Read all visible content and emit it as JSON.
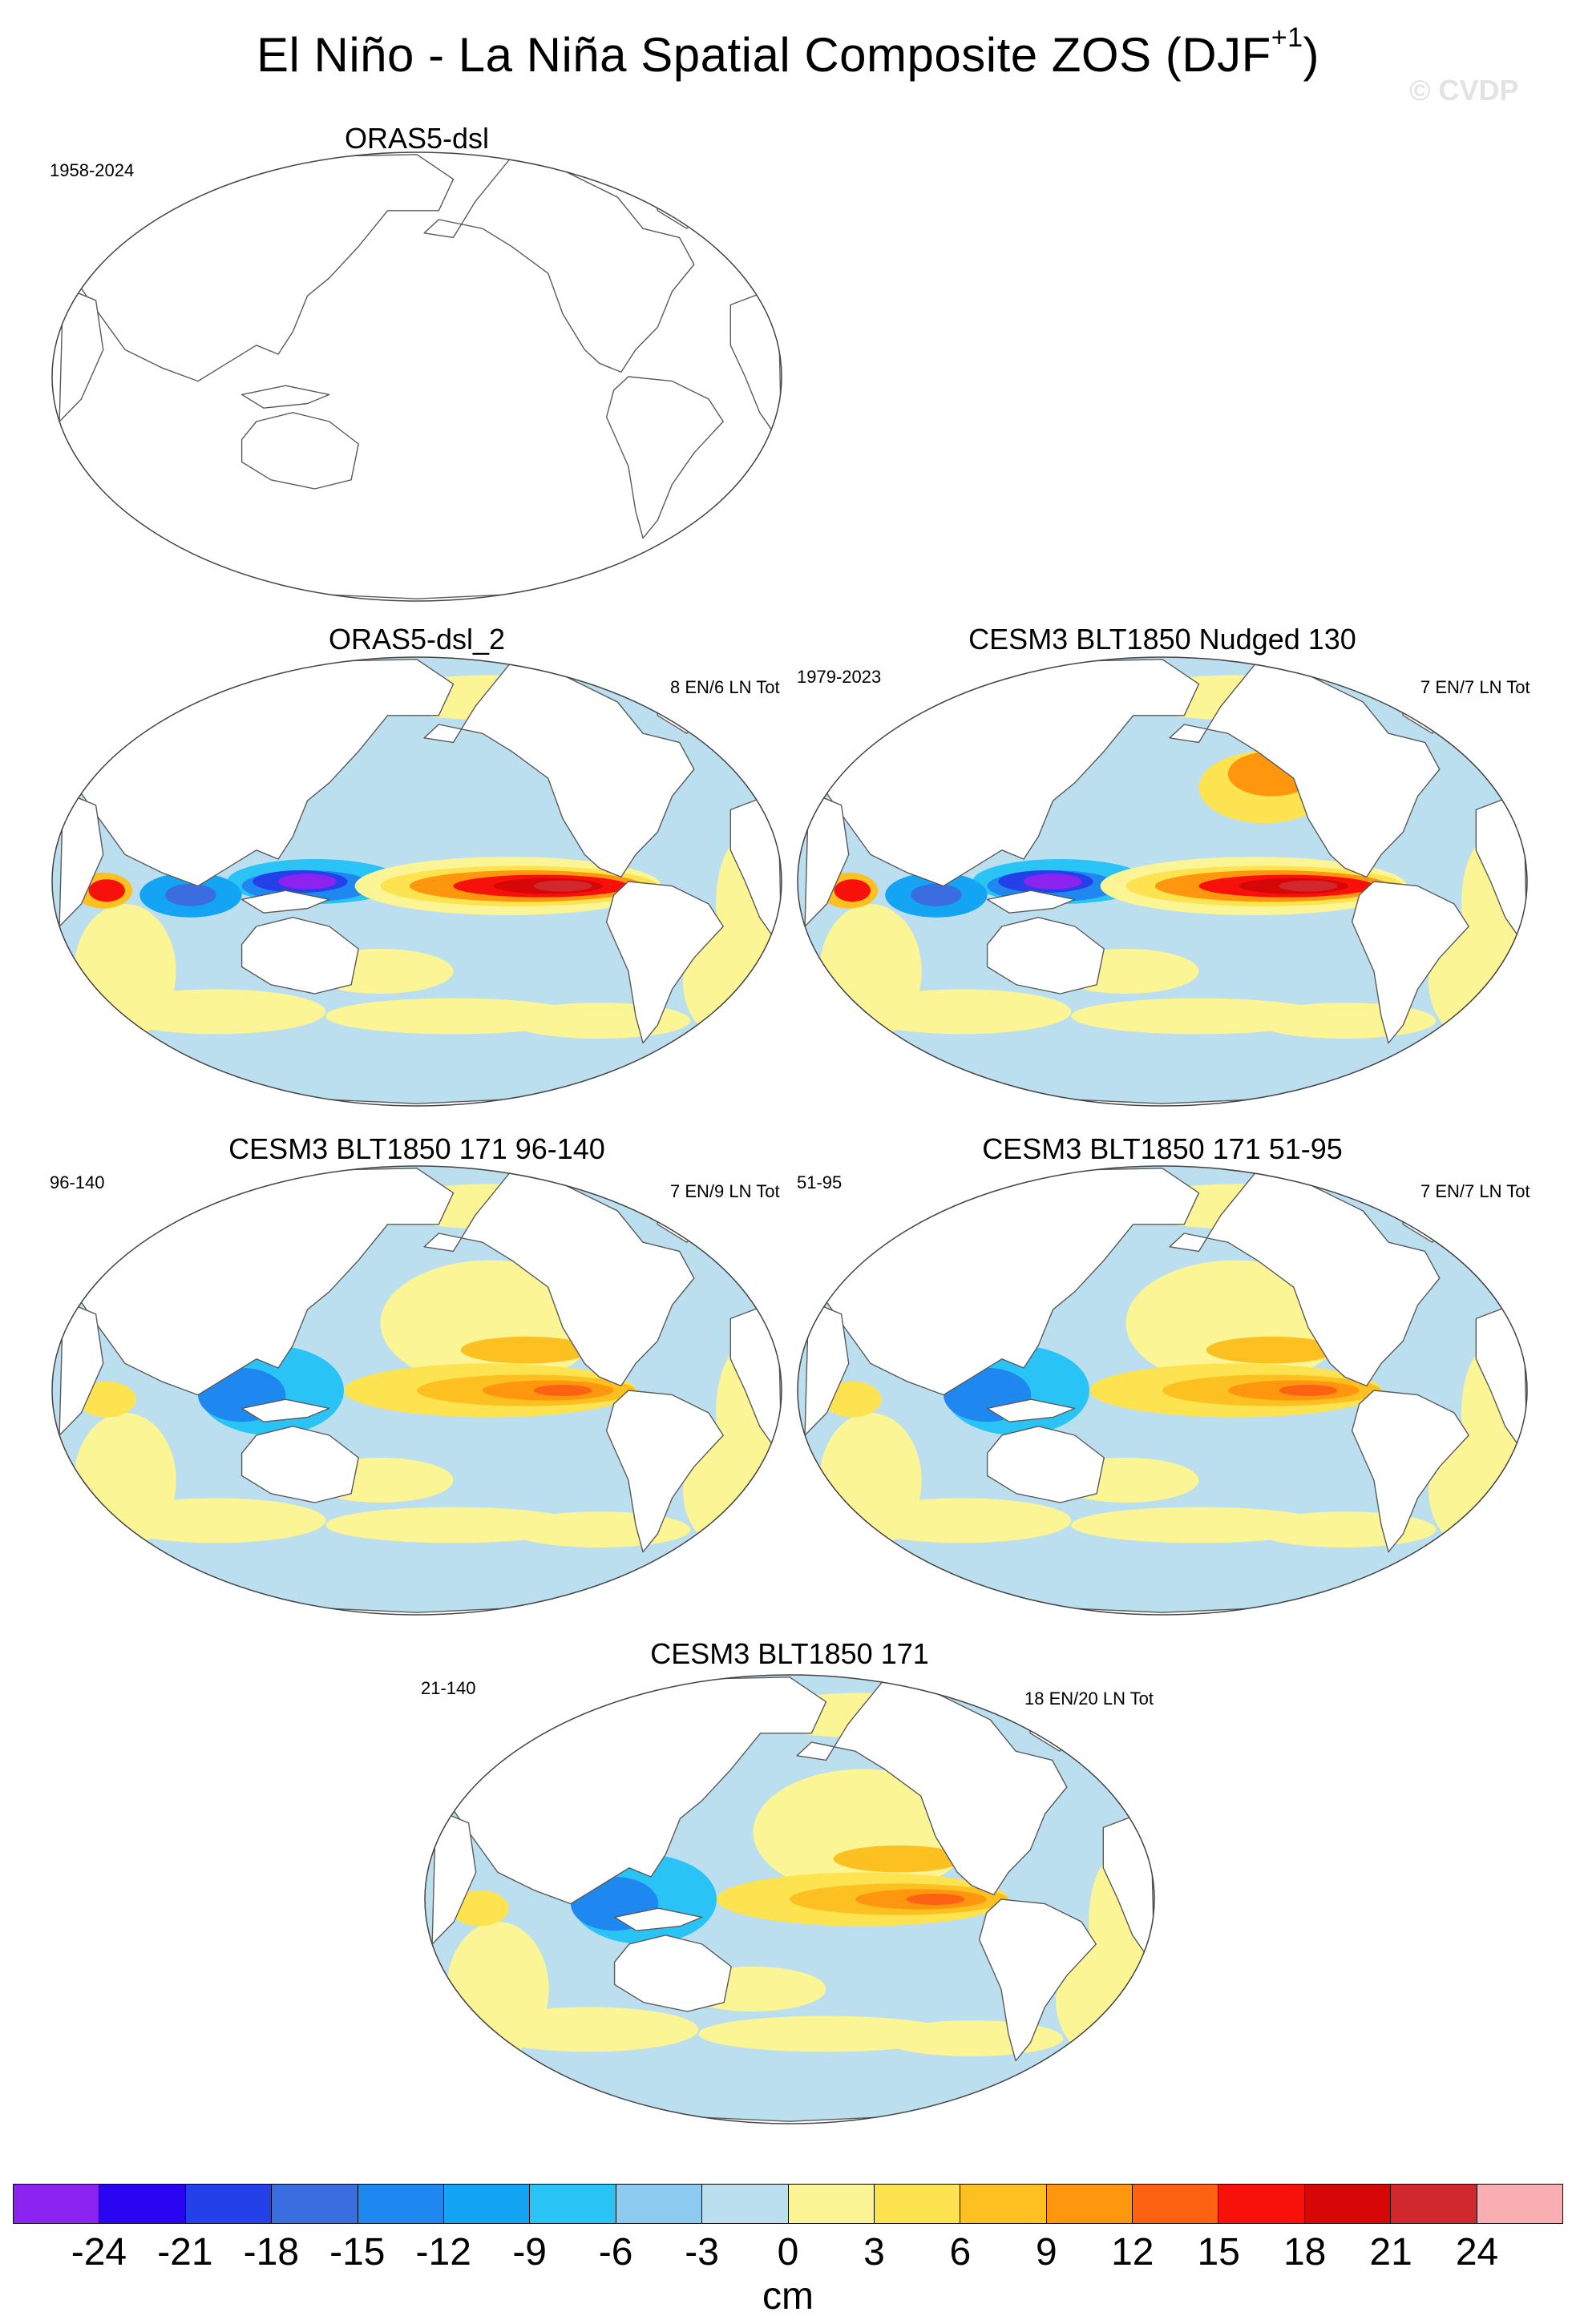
{
  "figure": {
    "title_main": "El Niño - La Niña Spatial Composite ZOS (DJF",
    "title_sup": "+1",
    "title_close": ")",
    "watermark": "© CVDP"
  },
  "panels": [
    {
      "id": "p1",
      "title": "ORAS5-dsl",
      "left_label": "1958-2024",
      "right_label": "",
      "field": "none"
    },
    {
      "id": "p2",
      "title": "ORAS5-dsl_2",
      "left_label": "",
      "right_label": "8 EN/6 LN Tot",
      "field": "obs"
    },
    {
      "id": "p3",
      "title": "CESM3 BLT1850 Nudged 130",
      "left_label": "1979-2023",
      "right_label": "7 EN/7 LN Tot",
      "field": "nudged"
    },
    {
      "id": "p4",
      "title": "CESM3 BLT1850 171 96-140",
      "left_label": "96-140",
      "right_label": "7 EN/9 LN Tot",
      "field": "model"
    },
    {
      "id": "p5",
      "title": "CESM3 BLT1850 171 51-95",
      "left_label": "51-95",
      "right_label": "7 EN/7 LN Tot",
      "field": "model"
    },
    {
      "id": "p6",
      "title": "CESM3 BLT1850 171",
      "left_label": "21-140",
      "right_label": "18 EN/20 LN Tot",
      "field": "model"
    }
  ],
  "colorbar": {
    "units": "cm",
    "tick_labels": [
      "-24",
      "-21",
      "-18",
      "-15",
      "-12",
      "-9",
      "-6",
      "-3",
      "0",
      "3",
      "6",
      "9",
      "12",
      "15",
      "18",
      "21",
      "24"
    ],
    "colors": [
      "#8d23f0",
      "#2b05f2",
      "#2440e9",
      "#3a6ee0",
      "#1f87f0",
      "#14a4f4",
      "#29c3f6",
      "#8ccaf0",
      "#bcdff0",
      "#fbf595",
      "#fce34f",
      "#fcc020",
      "#fe970d",
      "#fc6212",
      "#f8110b",
      "#d80707",
      "#d1282d",
      "#f9aeb2"
    ]
  }
}
